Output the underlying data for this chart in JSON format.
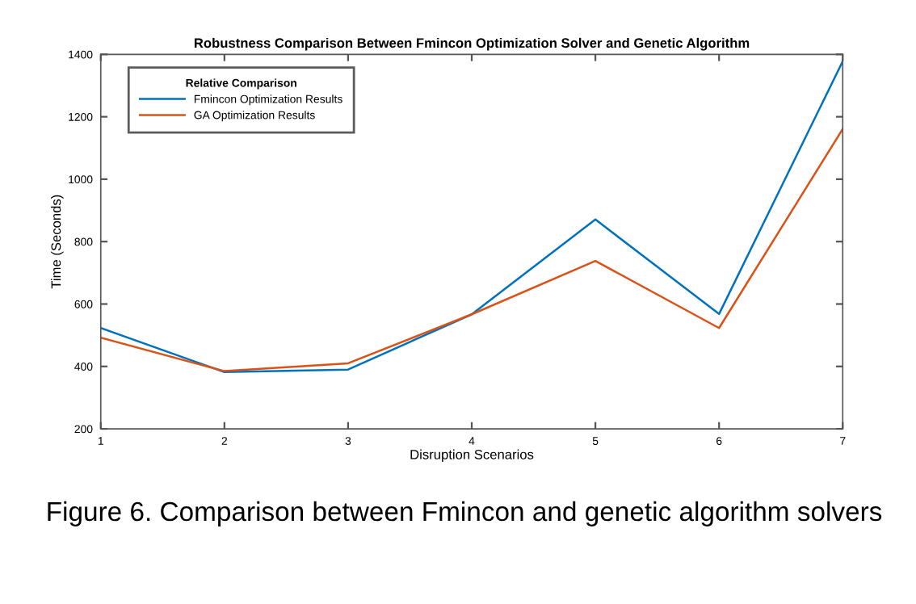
{
  "chart_data": {
    "type": "line",
    "title": "Robustness Comparison Between Fmincon Optimization Solver and Genetic Algorithm",
    "xlabel": "Disruption Scenarios",
    "ylabel": "Time (Seconds)",
    "legend_title": "Relative Comparison",
    "legend": "top left",
    "x": [
      1,
      2,
      3,
      4,
      5,
      6,
      7
    ],
    "series": [
      {
        "name": "Fmincon Optimization Results",
        "color": "#0072bd",
        "values": [
          523,
          382,
          390,
          567,
          871,
          568,
          1378
        ]
      },
      {
        "name": "GA Optimization Results",
        "color": "#d95319",
        "values": [
          492,
          385,
          410,
          567,
          738,
          523,
          1161
        ]
      }
    ],
    "xlim": [
      1,
      7
    ],
    "xticks": [
      1,
      2,
      3,
      4,
      5,
      6,
      7
    ],
    "ylim": [
      200,
      1400
    ],
    "yticks": [
      200,
      400,
      600,
      800,
      1000,
      1200,
      1400
    ],
    "grid": false,
    "marker": "none",
    "line_style": "solid",
    "annotations": [
      "Figure 6. Comparison between Fmincon and genetic algorithm solvers"
    ]
  }
}
